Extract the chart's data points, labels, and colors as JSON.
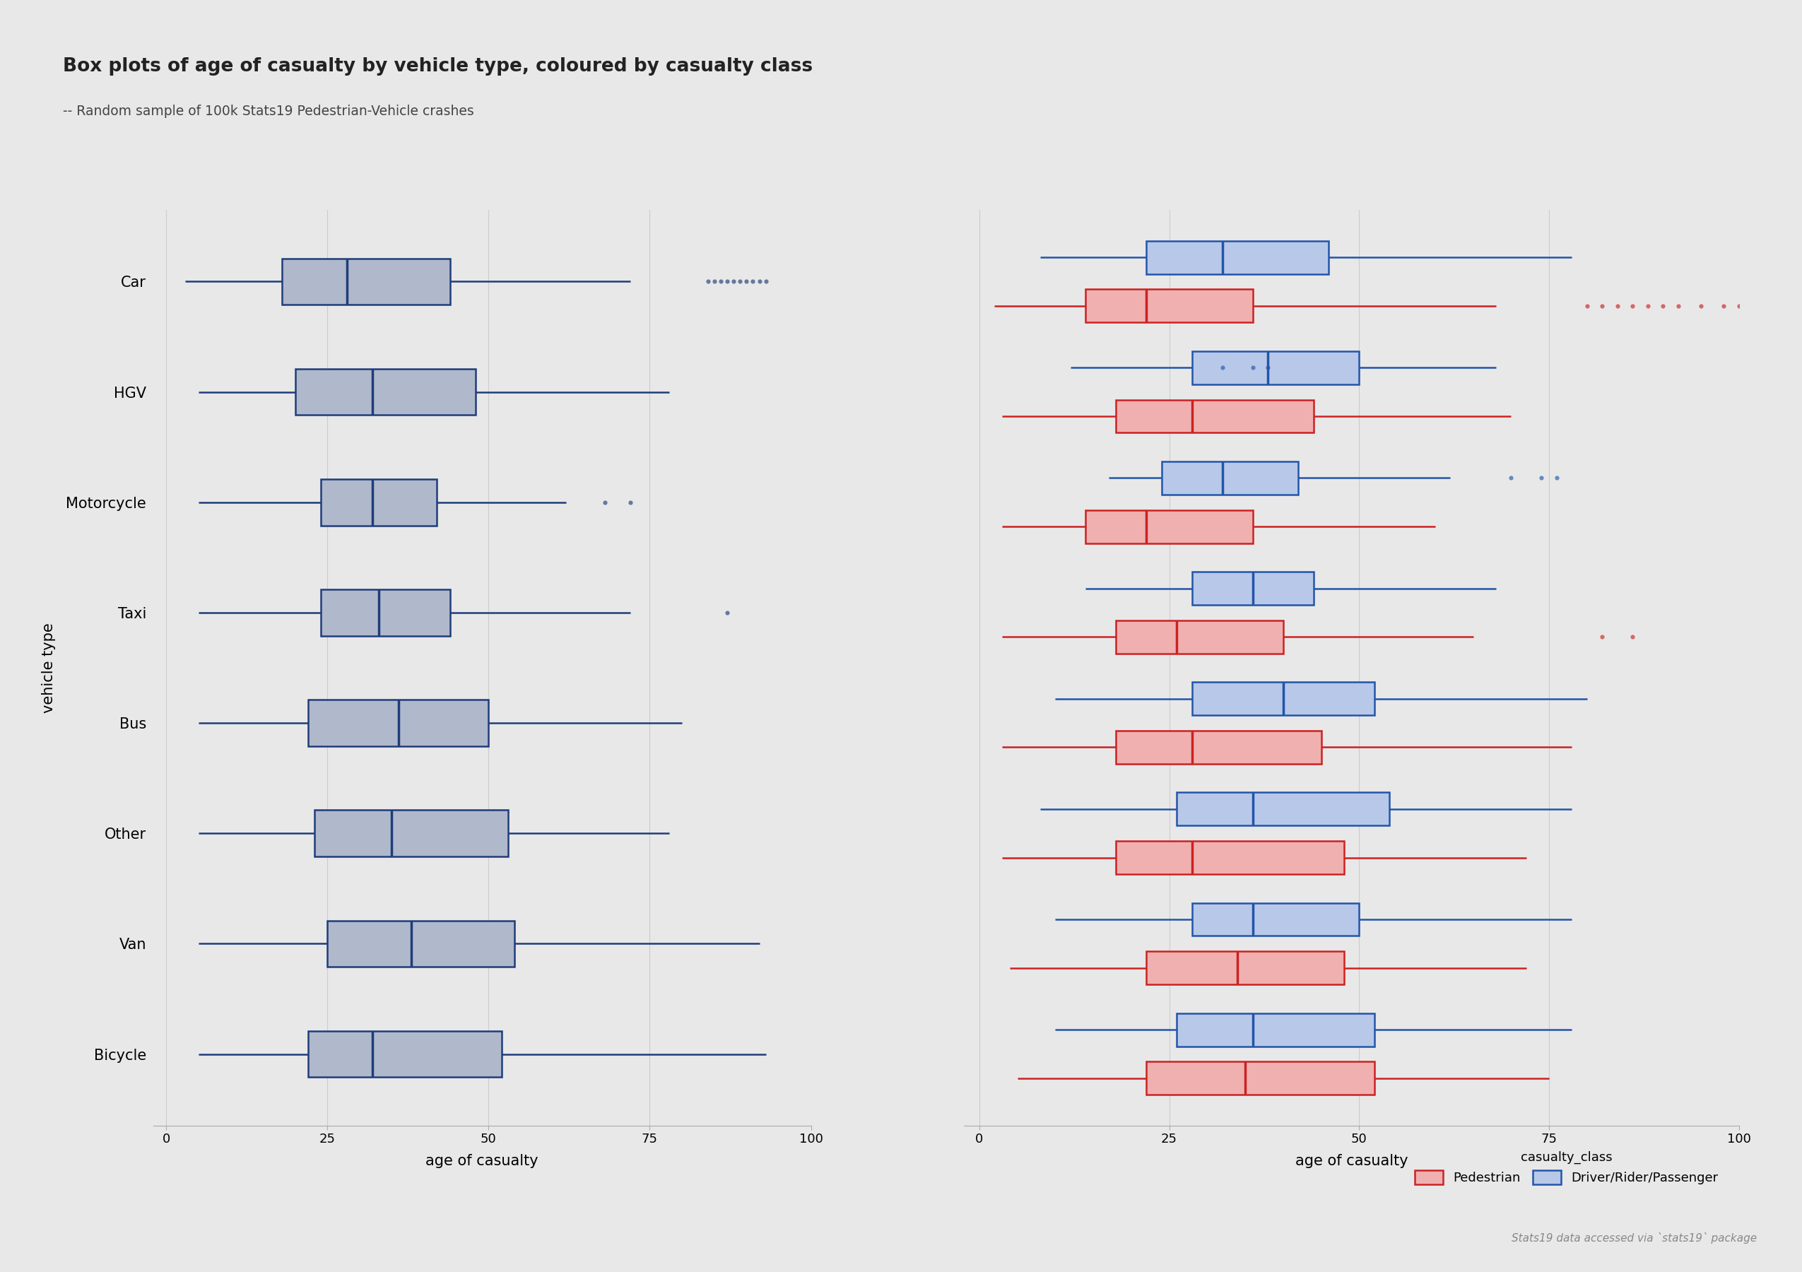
{
  "title": "Box plots of age of casualty by vehicle type, coloured by casualty class",
  "subtitle": "-- Random sample of 100k Stats19 Pedestrian-Vehicle crashes",
  "footnote": "Stats19 data accessed via `stats19` package",
  "xlabel": "age of casualty",
  "ylabel": "vehicle type",
  "background_color": "#e8e8e8",
  "vehicle_types": [
    "Bicycle",
    "Van",
    "Other",
    "Bus",
    "Taxi",
    "Motorcycle",
    "HGV",
    "Car"
  ],
  "xlim": [
    -2,
    100
  ],
  "xticks": [
    0,
    25,
    50,
    75,
    100
  ],
  "combined": {
    "Bicycle": {
      "q1": 22,
      "med": 32,
      "q3": 52,
      "whislo": 5,
      "whishi": 93,
      "fliers": []
    },
    "Van": {
      "q1": 25,
      "med": 38,
      "q3": 54,
      "whislo": 5,
      "whishi": 92,
      "fliers": []
    },
    "Other": {
      "q1": 23,
      "med": 35,
      "q3": 53,
      "whislo": 5,
      "whishi": 78,
      "fliers": []
    },
    "Bus": {
      "q1": 22,
      "med": 36,
      "q3": 50,
      "whislo": 5,
      "whishi": 80,
      "fliers": []
    },
    "Taxi": {
      "q1": 24,
      "med": 33,
      "q3": 44,
      "whislo": 5,
      "whishi": 72,
      "fliers": [
        87
      ]
    },
    "Motorcycle": {
      "q1": 24,
      "med": 32,
      "q3": 42,
      "whislo": 5,
      "whishi": 62,
      "fliers": [
        68,
        72
      ]
    },
    "HGV": {
      "q1": 20,
      "med": 32,
      "q3": 48,
      "whislo": 5,
      "whishi": 78,
      "fliers": []
    },
    "Car": {
      "q1": 18,
      "med": 28,
      "q3": 44,
      "whislo": 3,
      "whishi": 72,
      "fliers": [
        84,
        85,
        86,
        87,
        88,
        89,
        90,
        91,
        92,
        93
      ]
    }
  },
  "pedestrian": {
    "Bicycle": {
      "q1": 22,
      "med": 35,
      "q3": 52,
      "whislo": 5,
      "whishi": 75,
      "fliers": []
    },
    "Van": {
      "q1": 22,
      "med": 34,
      "q3": 48,
      "whislo": 4,
      "whishi": 72,
      "fliers": []
    },
    "Other": {
      "q1": 18,
      "med": 28,
      "q3": 48,
      "whislo": 3,
      "whishi": 72,
      "fliers": []
    },
    "Bus": {
      "q1": 18,
      "med": 28,
      "q3": 45,
      "whislo": 3,
      "whishi": 78,
      "fliers": []
    },
    "Taxi": {
      "q1": 18,
      "med": 26,
      "q3": 40,
      "whislo": 3,
      "whishi": 65,
      "fliers": [
        82,
        86
      ]
    },
    "Motorcycle": {
      "q1": 14,
      "med": 22,
      "q3": 36,
      "whislo": 3,
      "whishi": 60,
      "fliers": []
    },
    "HGV": {
      "q1": 18,
      "med": 28,
      "q3": 44,
      "whislo": 3,
      "whishi": 70,
      "fliers": []
    },
    "Car": {
      "q1": 14,
      "med": 22,
      "q3": 36,
      "whislo": 2,
      "whishi": 68,
      "fliers": [
        80,
        82,
        84,
        86,
        88,
        90,
        92,
        95,
        98,
        100,
        101
      ]
    }
  },
  "drp": {
    "Bicycle": {
      "q1": 26,
      "med": 36,
      "q3": 52,
      "whislo": 10,
      "whishi": 78,
      "fliers": []
    },
    "Van": {
      "q1": 28,
      "med": 36,
      "q3": 50,
      "whislo": 10,
      "whishi": 78,
      "fliers": []
    },
    "Other": {
      "q1": 26,
      "med": 36,
      "q3": 54,
      "whislo": 8,
      "whishi": 78,
      "fliers": []
    },
    "Bus": {
      "q1": 28,
      "med": 40,
      "q3": 52,
      "whislo": 10,
      "whishi": 80,
      "fliers": []
    },
    "Taxi": {
      "q1": 28,
      "med": 36,
      "q3": 44,
      "whislo": 14,
      "whishi": 68,
      "fliers": []
    },
    "Motorcycle": {
      "q1": 24,
      "med": 32,
      "q3": 42,
      "whislo": 17,
      "whishi": 62,
      "fliers": [
        70,
        74,
        76
      ]
    },
    "HGV": {
      "q1": 28,
      "med": 38,
      "q3": 50,
      "whislo": 12,
      "whishi": 68,
      "fliers": [
        32,
        36,
        38
      ]
    },
    "Car": {
      "q1": 22,
      "med": 32,
      "q3": 46,
      "whislo": 8,
      "whishi": 78,
      "fliers": []
    }
  },
  "combined_color": "#1f3d7a",
  "combined_fill": "#b0b8cc",
  "pedestrian_color": "#cc2222",
  "pedestrian_fill": "#f0b0b0",
  "drp_color": "#2255aa",
  "drp_fill": "#b8c8e8",
  "grid_color": "#cccccc"
}
